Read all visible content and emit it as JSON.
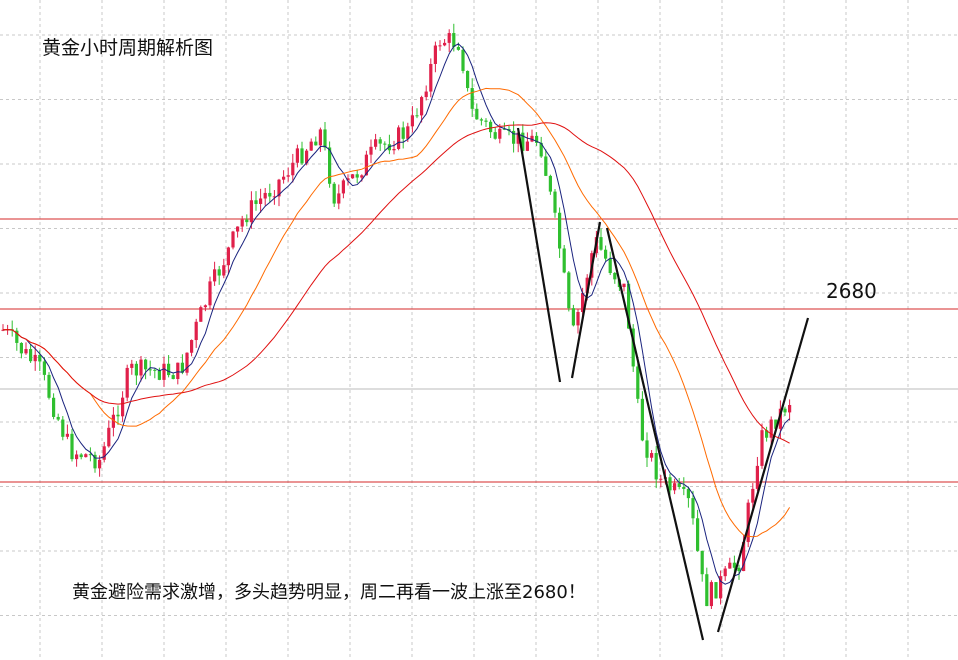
{
  "header": {
    "title": "黄金小时周期解析图"
  },
  "annotations": {
    "level": "2680",
    "caption": "黄金避险需求激增，多头趋势明显，周二再看一波上涨至2680！"
  }
}
